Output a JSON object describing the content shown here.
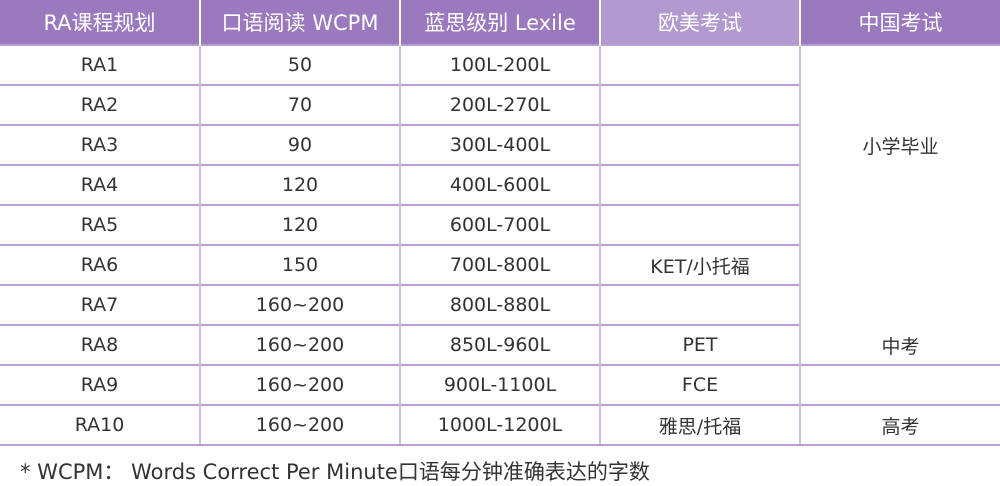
{
  "table": {
    "headers": [
      "RA课程规划",
      "口语阅读 WCPM",
      "蓝思级别 Lexile",
      "欧美考试",
      "中国考试"
    ],
    "rows": [
      [
        "RA1",
        "50",
        "100L-200L",
        "",
        ""
      ],
      [
        "RA2",
        "70",
        "200L-270L",
        "",
        ""
      ],
      [
        "RA3",
        "90",
        "300L-400L",
        "",
        "小学毕业"
      ],
      [
        "RA4",
        "120",
        "400L-600L",
        "",
        ""
      ],
      [
        "RA5",
        "120",
        "600L-700L",
        "",
        ""
      ],
      [
        "RA6",
        "150",
        "700L-800L",
        "KET/小托福",
        ""
      ],
      [
        "RA7",
        "160~200",
        "800L-880L",
        "",
        ""
      ],
      [
        "RA8",
        "160~200",
        "850L-960L",
        "PET",
        "中考"
      ],
      [
        "RA9",
        "160~200",
        "900L-1100L",
        "FCE",
        ""
      ],
      [
        "RA10",
        "160~200",
        "1000L-1200L",
        "雅思/托福",
        "高考"
      ]
    ]
  },
  "footnote": "* WCPM： Words Correct Per Minute口语每分钟准确表达的字数",
  "colors": {
    "header_bg": "#9b79bf",
    "header_bg_light": "#b29ad0",
    "grid_line": "#b8a1d2",
    "text": "#333333"
  }
}
